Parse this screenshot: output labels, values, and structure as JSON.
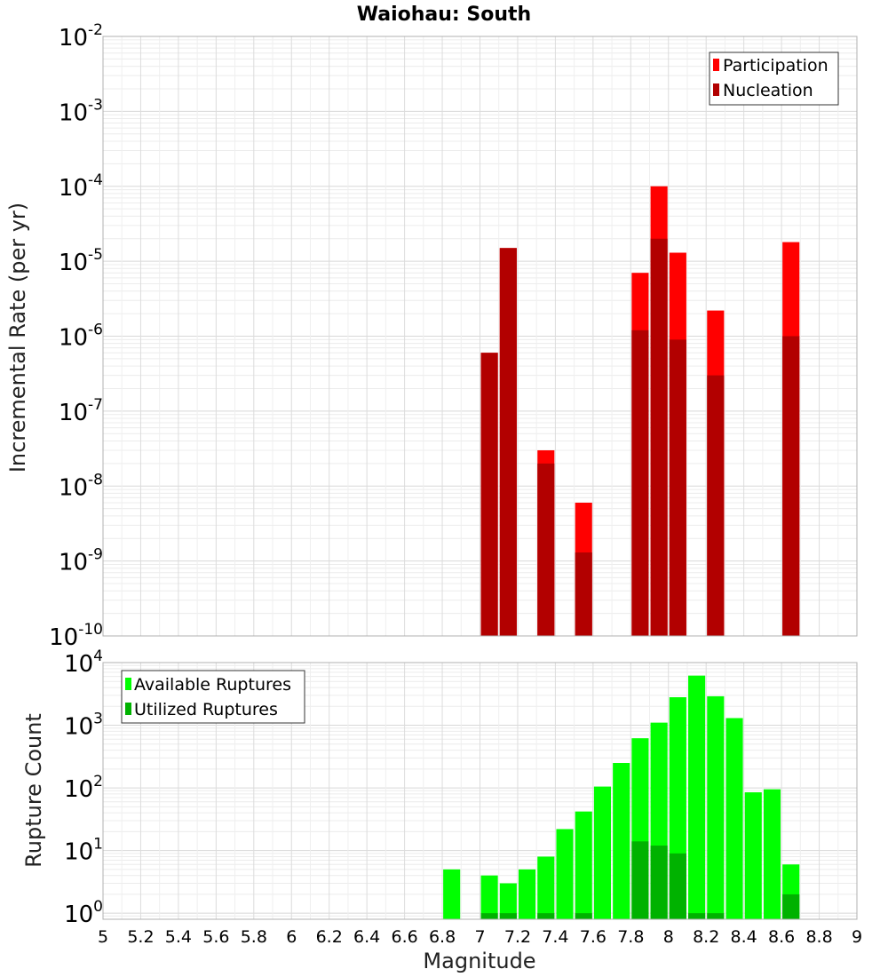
{
  "chart_data": [
    {
      "type": "bar",
      "title": "Waiohau: South",
      "xlabel": "",
      "ylabel": "Incremental Rate (per yr)",
      "yscale": "log",
      "xlim": [
        5,
        9
      ],
      "ylim": [
        1e-10,
        0.01
      ],
      "y_tick_bases": [
        "10",
        "10",
        "10",
        "10",
        "10",
        "10",
        "10",
        "10",
        "10"
      ],
      "y_tick_exponents": [
        "-10",
        "-9",
        "-8",
        "-7",
        "-6",
        "-5",
        "-4",
        "-3",
        "-2"
      ],
      "y_tick_values": [
        1e-10,
        1e-09,
        1e-08,
        1e-07,
        1e-06,
        1e-05,
        0.0001,
        0.001,
        0.01
      ],
      "grid": true,
      "legend_position": "top-right",
      "bar_width": 0.09,
      "series": [
        {
          "name": "Participation",
          "color": "#ff0000",
          "x": [
            7.05,
            7.15,
            7.35,
            7.55,
            7.85,
            7.95,
            8.05,
            8.25,
            8.65
          ],
          "values": [
            6e-07,
            1.5e-05,
            3e-08,
            6e-09,
            7e-06,
            0.0001,
            1.3e-05,
            2.2e-06,
            1.8e-05
          ]
        },
        {
          "name": "Nucleation",
          "color": "#b20000",
          "x": [
            7.05,
            7.15,
            7.35,
            7.55,
            7.85,
            7.95,
            8.05,
            8.25,
            8.65
          ],
          "values": [
            6e-07,
            1.5e-05,
            2e-08,
            1.3e-09,
            1.2e-06,
            2e-05,
            9e-07,
            3e-07,
            1e-06
          ]
        }
      ]
    },
    {
      "type": "bar",
      "title": "",
      "xlabel": "Magnitude",
      "ylabel": "Rupture Count",
      "yscale": "log",
      "xlim": [
        5,
        9
      ],
      "ylim": [
        0.8,
        10000
      ],
      "x_ticks": [
        "5",
        "5.2",
        "5.4",
        "5.6",
        "5.8",
        "6",
        "6.2",
        "6.4",
        "6.6",
        "6.8",
        "7",
        "7.2",
        "7.4",
        "7.6",
        "7.8",
        "8",
        "8.2",
        "8.4",
        "8.6",
        "8.8",
        "9"
      ],
      "y_tick_bases": [
        "10",
        "10",
        "10",
        "10",
        "10"
      ],
      "y_tick_exponents": [
        "0",
        "1",
        "2",
        "3",
        "4"
      ],
      "y_tick_values": [
        1,
        10,
        100,
        1000,
        10000
      ],
      "grid": true,
      "legend_position": "top-left",
      "bar_width": 0.09,
      "series": [
        {
          "name": "Available Ruptures",
          "color": "#00ff00",
          "x": [
            6.85,
            7.05,
            7.15,
            7.25,
            7.35,
            7.45,
            7.55,
            7.65,
            7.75,
            7.85,
            7.95,
            8.05,
            8.15,
            8.25,
            8.35,
            8.45,
            8.55,
            8.65
          ],
          "values": [
            5,
            4,
            3,
            5,
            8,
            22,
            42,
            105,
            250,
            620,
            1100,
            2800,
            6200,
            2900,
            1300,
            85,
            95,
            6
          ]
        },
        {
          "name": "Utilized Ruptures",
          "color": "#00b200",
          "x": [
            7.05,
            7.15,
            7.35,
            7.55,
            7.85,
            7.95,
            8.05,
            8.15,
            8.25,
            8.65
          ],
          "values": [
            1,
            1,
            1,
            1,
            14,
            12,
            9,
            1,
            1,
            2
          ]
        }
      ]
    }
  ]
}
